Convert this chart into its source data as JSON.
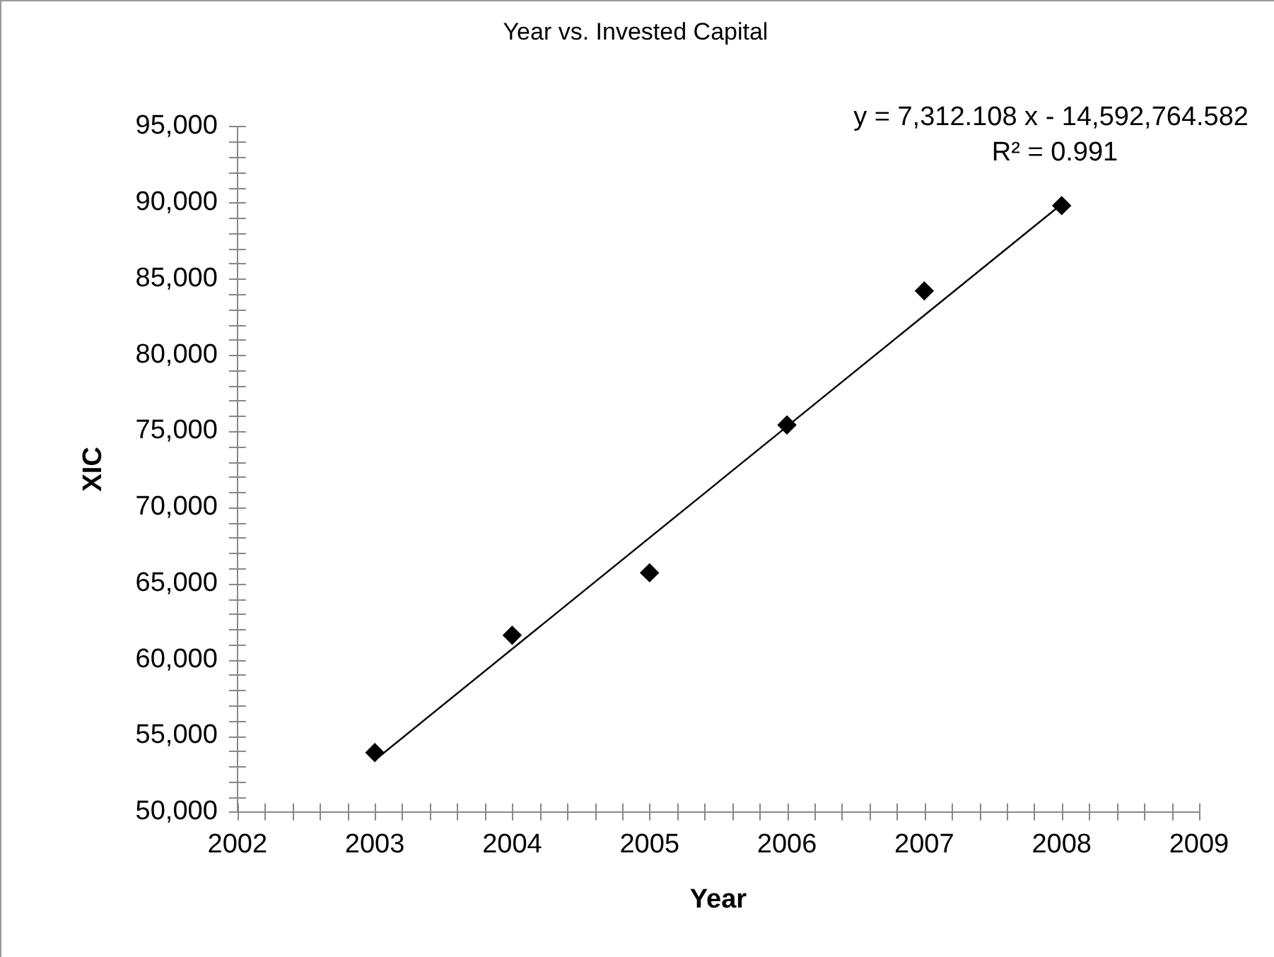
{
  "chart_data": {
    "type": "scatter",
    "title": "Year vs. Invested Capital",
    "xlabel": "Year",
    "ylabel": "XIC",
    "annotations": [
      "y = 7,312.108 x - 14,592,764.582",
      "R² = 0.991"
    ],
    "xlim": [
      2002,
      2009
    ],
    "xticks": [
      2002,
      {
        "value": 2002.2,
        "label": null
      },
      {
        "value": 2002.4,
        "label": null
      },
      {
        "value": 2002.6,
        "label": null
      },
      {
        "value": 2002.8,
        "label": null
      },
      2003,
      {
        "value": 2003.2,
        "label": null
      },
      {
        "value": 2003.4,
        "label": null
      },
      {
        "value": 2003.6,
        "label": null
      },
      {
        "value": 2003.8,
        "label": null
      },
      2004,
      {
        "value": 2004.2,
        "label": null
      },
      {
        "value": 2004.4,
        "label": null
      },
      {
        "value": 2004.6,
        "label": null
      },
      {
        "value": 2004.8,
        "label": null
      },
      2005,
      {
        "value": 2005.2,
        "label": null
      },
      {
        "value": 2005.4,
        "label": null
      },
      {
        "value": 2005.6,
        "label": null
      },
      {
        "value": 2005.8,
        "label": null
      },
      2006,
      {
        "value": 2006.2,
        "label": null
      },
      {
        "value": 2006.4,
        "label": null
      },
      {
        "value": 2006.6,
        "label": null
      },
      {
        "value": 2006.8,
        "label": null
      },
      2007,
      {
        "value": 2007.2,
        "label": null
      },
      {
        "value": 2007.4,
        "label": null
      },
      {
        "value": 2007.6,
        "label": null
      },
      {
        "value": 2007.8,
        "label": null
      },
      2008,
      {
        "value": 2008.2,
        "label": null
      },
      {
        "value": 2008.4,
        "label": null
      },
      {
        "value": 2008.6,
        "label": null
      },
      {
        "value": 2008.8,
        "label": null
      },
      2009
    ],
    "ylim": [
      50000,
      95000
    ],
    "yticks": [
      {
        "value": 50000,
        "label": "50,000"
      },
      {
        "value": 51000,
        "label": null
      },
      {
        "value": 52000,
        "label": null
      },
      {
        "value": 53000,
        "label": null
      },
      {
        "value": 54000,
        "label": null
      },
      {
        "value": 55000,
        "label": "55,000"
      },
      {
        "value": 56000,
        "label": null
      },
      {
        "value": 57000,
        "label": null
      },
      {
        "value": 58000,
        "label": null
      },
      {
        "value": 59000,
        "label": null
      },
      {
        "value": 60000,
        "label": "60,000"
      },
      {
        "value": 61000,
        "label": null
      },
      {
        "value": 62000,
        "label": null
      },
      {
        "value": 63000,
        "label": null
      },
      {
        "value": 64000,
        "label": null
      },
      {
        "value": 65000,
        "label": "65,000"
      },
      {
        "value": 66000,
        "label": null
      },
      {
        "value": 67000,
        "label": null
      },
      {
        "value": 68000,
        "label": null
      },
      {
        "value": 69000,
        "label": null
      },
      {
        "value": 70000,
        "label": "70,000"
      },
      {
        "value": 71000,
        "label": null
      },
      {
        "value": 72000,
        "label": null
      },
      {
        "value": 73000,
        "label": null
      },
      {
        "value": 74000,
        "label": null
      },
      {
        "value": 75000,
        "label": "75,000"
      },
      {
        "value": 76000,
        "label": null
      },
      {
        "value": 77000,
        "label": null
      },
      {
        "value": 78000,
        "label": null
      },
      {
        "value": 79000,
        "label": null
      },
      {
        "value": 80000,
        "label": "80,000"
      },
      {
        "value": 81000,
        "label": null
      },
      {
        "value": 82000,
        "label": null
      },
      {
        "value": 83000,
        "label": null
      },
      {
        "value": 84000,
        "label": null
      },
      {
        "value": 85000,
        "label": "85,000"
      },
      {
        "value": 86000,
        "label": null
      },
      {
        "value": 87000,
        "label": null
      },
      {
        "value": 88000,
        "label": null
      },
      {
        "value": 89000,
        "label": null
      },
      {
        "value": 90000,
        "label": "90,000"
      },
      {
        "value": 91000,
        "label": null
      },
      {
        "value": 92000,
        "label": null
      },
      {
        "value": 93000,
        "label": null
      },
      {
        "value": 94000,
        "label": null
      },
      {
        "value": 95000,
        "label": "95,000"
      }
    ],
    "grid": false,
    "legend": false,
    "series": [
      {
        "type": "scatter",
        "color": "#000000",
        "marker": "diamond",
        "x": [
          2003,
          2004,
          2005,
          2006,
          2007,
          2008
        ],
        "values": [
          53900,
          61600,
          65700,
          75400,
          84200,
          89800
        ]
      },
      {
        "type": "line",
        "color": "#000000",
        "marker": "none",
        "x": [
          2003,
          2008
        ],
        "values": [
          53400,
          89900
        ]
      }
    ]
  }
}
